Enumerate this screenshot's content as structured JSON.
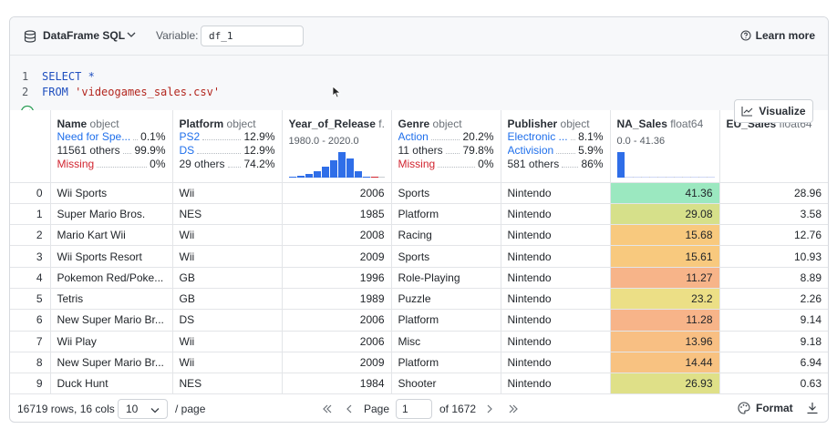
{
  "toolbar": {
    "title": "DataFrame SQL",
    "variable_label": "Variable:",
    "variable_value": "df_1",
    "learn_more": "Learn more"
  },
  "editor": {
    "line_numbers": [
      "1",
      "2"
    ],
    "line1_kw": "SELECT",
    "line1_rest": " *",
    "line2_kw": "FROM",
    "line2_str": "'videogames_sales.csv'"
  },
  "visualize_label": "Visualize",
  "columns": [
    {
      "name": "Name",
      "type": "object",
      "stats": [
        {
          "label": "Need for Spe...",
          "value": "0.1%",
          "style": "blue"
        },
        {
          "label": "11561 others",
          "value": "99.9%",
          "style": "grey"
        },
        {
          "label": "Missing",
          "value": "0%",
          "style": "red"
        }
      ]
    },
    {
      "name": "Platform",
      "type": "object",
      "stats": [
        {
          "label": "PS2",
          "value": "12.9%",
          "style": "blue"
        },
        {
          "label": "DS",
          "value": "12.9%",
          "style": "blue"
        },
        {
          "label": "29 others",
          "value": "74.2%",
          "style": "grey"
        }
      ]
    },
    {
      "name": "Year_of_Release",
      "type": "f...",
      "range": "1980.0 - 2020.0",
      "hist": [
        1,
        2,
        3,
        6,
        10,
        16,
        24,
        18,
        6,
        1,
        1
      ]
    },
    {
      "name": "Genre",
      "type": "object",
      "stats": [
        {
          "label": "Action",
          "value": "20.2%",
          "style": "blue"
        },
        {
          "label": "11 others",
          "value": "79.8%",
          "style": "grey"
        },
        {
          "label": "Missing",
          "value": "0%",
          "style": "red"
        }
      ]
    },
    {
      "name": "Publisher",
      "type": "object",
      "stats": [
        {
          "label": "Electronic ...",
          "value": "8.1%",
          "style": "blue"
        },
        {
          "label": "Activision",
          "value": "5.9%",
          "style": "blue"
        },
        {
          "label": "581 others",
          "value": "86%",
          "style": "grey"
        }
      ]
    },
    {
      "name": "NA_Sales",
      "type": "float64",
      "range": "0.0 - 41.36",
      "hist": [
        28,
        1,
        1,
        1,
        1,
        1,
        1,
        1,
        1,
        1,
        1,
        1
      ]
    },
    {
      "name": "EU_Sales",
      "type": "float64"
    }
  ],
  "rows": [
    {
      "idx": "0",
      "name": "Wii Sports",
      "platform": "Wii",
      "year": "2006",
      "genre": "Sports",
      "publisher": "Nintendo",
      "na": "41.36",
      "na_color": "#9be8c0",
      "eu": "28.96"
    },
    {
      "idx": "1",
      "name": "Super Mario Bros.",
      "platform": "NES",
      "year": "1985",
      "genre": "Platform",
      "publisher": "Nintendo",
      "na": "29.08",
      "na_color": "#d6e08a",
      "eu": "3.58"
    },
    {
      "idx": "2",
      "name": "Mario Kart Wii",
      "platform": "Wii",
      "year": "2008",
      "genre": "Racing",
      "publisher": "Nintendo",
      "na": "15.68",
      "na_color": "#f8c97e",
      "eu": "12.76"
    },
    {
      "idx": "3",
      "name": "Wii Sports Resort",
      "platform": "Wii",
      "year": "2009",
      "genre": "Sports",
      "publisher": "Nintendo",
      "na": "15.61",
      "na_color": "#f8c97e",
      "eu": "10.93"
    },
    {
      "idx": "4",
      "name": "Pokemon Red/Poke...",
      "platform": "GB",
      "year": "1996",
      "genre": "Role-Playing",
      "publisher": "Nintendo",
      "na": "11.27",
      "na_color": "#f7b489",
      "eu": "8.89"
    },
    {
      "idx": "5",
      "name": "Tetris",
      "platform": "GB",
      "year": "1989",
      "genre": "Puzzle",
      "publisher": "Nintendo",
      "na": "23.2",
      "na_color": "#ecdf86",
      "eu": "2.26"
    },
    {
      "idx": "6",
      "name": "New Super Mario Br...",
      "platform": "DS",
      "year": "2006",
      "genre": "Platform",
      "publisher": "Nintendo",
      "na": "11.28",
      "na_color": "#f7b489",
      "eu": "9.14"
    },
    {
      "idx": "7",
      "name": "Wii Play",
      "platform": "Wii",
      "year": "2006",
      "genre": "Misc",
      "publisher": "Nintendo",
      "na": "13.96",
      "na_color": "#f8bf83",
      "eu": "9.18"
    },
    {
      "idx": "8",
      "name": "New Super Mario Br...",
      "platform": "Wii",
      "year": "2009",
      "genre": "Platform",
      "publisher": "Nintendo",
      "na": "14.44",
      "na_color": "#f8c281",
      "eu": "6.94"
    },
    {
      "idx": "9",
      "name": "Duck Hunt",
      "platform": "NES",
      "year": "1984",
      "genre": "Shooter",
      "publisher": "Nintendo",
      "na": "26.93",
      "na_color": "#dfe088",
      "eu": "0.63"
    }
  ],
  "footer": {
    "rows_cols": "16719 rows, 16 cols",
    "page_size": "10",
    "per_page": "/ page",
    "page_label": "Page",
    "page_value": "1",
    "of_pages": "of 1672",
    "format_label": "Format"
  }
}
